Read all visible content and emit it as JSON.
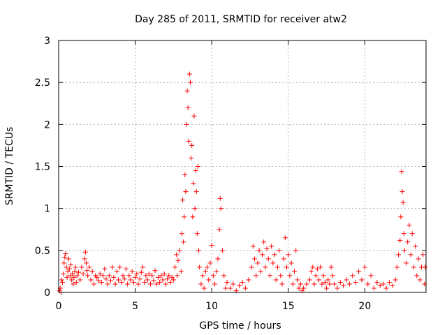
{
  "chart_data": {
    "type": "scatter",
    "title": "Day 285 of 2011, SRMTID for receiver atw2",
    "xlabel": "GPS time / hours",
    "ylabel": "SRMTID / TECUs",
    "xlim": [
      0,
      24
    ],
    "ylim": [
      0,
      3
    ],
    "xticks": [
      0,
      5,
      10,
      15,
      20
    ],
    "xtick_labels": [
      "0",
      "5",
      "10",
      "15",
      "20"
    ],
    "yticks": [
      0,
      0.5,
      1,
      1.5,
      2,
      2.5,
      3
    ],
    "ytick_labels": [
      "0",
      "0.5",
      "1",
      "1.5",
      "2",
      "2.5",
      "3"
    ],
    "grid": true,
    "marker": "plus",
    "series_color": "#ff0000",
    "series": [
      {
        "name": "SRMTID",
        "points": [
          [
            0.05,
            0.02
          ],
          [
            0.1,
            0.05
          ],
          [
            0.15,
            0.0
          ],
          [
            0.2,
            0.15
          ],
          [
            0.25,
            0.12
          ],
          [
            0.3,
            0.22
          ],
          [
            0.35,
            0.35
          ],
          [
            0.4,
            0.42
          ],
          [
            0.45,
            0.46
          ],
          [
            0.5,
            0.3
          ],
          [
            0.55,
            0.18
          ],
          [
            0.6,
            0.25
          ],
          [
            0.65,
            0.4
          ],
          [
            0.7,
            0.28
          ],
          [
            0.75,
            0.2
          ],
          [
            0.8,
            0.33
          ],
          [
            0.85,
            0.15
          ],
          [
            0.9,
            0.22
          ],
          [
            0.95,
            0.1
          ],
          [
            1.0,
            0.18
          ],
          [
            1.05,
            0.25
          ],
          [
            1.1,
            0.3
          ],
          [
            1.15,
            0.12
          ],
          [
            1.2,
            0.2
          ],
          [
            1.3,
            0.24
          ],
          [
            1.4,
            0.15
          ],
          [
            1.5,
            0.3
          ],
          [
            1.6,
            0.22
          ],
          [
            1.7,
            0.4
          ],
          [
            1.75,
            0.48
          ],
          [
            1.8,
            0.35
          ],
          [
            1.85,
            0.26
          ],
          [
            1.9,
            0.2
          ],
          [
            2.0,
            0.3
          ],
          [
            2.1,
            0.15
          ],
          [
            2.2,
            0.25
          ],
          [
            2.3,
            0.1
          ],
          [
            2.4,
            0.2
          ],
          [
            2.5,
            0.18
          ],
          [
            2.6,
            0.14
          ],
          [
            2.7,
            0.22
          ],
          [
            2.8,
            0.12
          ],
          [
            2.9,
            0.2
          ],
          [
            3.0,
            0.28
          ],
          [
            3.1,
            0.16
          ],
          [
            3.2,
            0.1
          ],
          [
            3.3,
            0.2
          ],
          [
            3.4,
            0.14
          ],
          [
            3.5,
            0.3
          ],
          [
            3.6,
            0.18
          ],
          [
            3.7,
            0.1
          ],
          [
            3.8,
            0.25
          ],
          [
            3.9,
            0.15
          ],
          [
            4.0,
            0.3
          ],
          [
            4.1,
            0.12
          ],
          [
            4.2,
            0.2
          ],
          [
            4.3,
            0.16
          ],
          [
            4.4,
            0.28
          ],
          [
            4.5,
            0.1
          ],
          [
            4.6,
            0.2
          ],
          [
            4.7,
            0.15
          ],
          [
            4.8,
            0.25
          ],
          [
            4.9,
            0.12
          ],
          [
            5.0,
            0.18
          ],
          [
            5.1,
            0.22
          ],
          [
            5.2,
            0.1
          ],
          [
            5.3,
            0.16
          ],
          [
            5.4,
            0.24
          ],
          [
            5.5,
            0.3
          ],
          [
            5.6,
            0.12
          ],
          [
            5.7,
            0.2
          ],
          [
            5.8,
            0.15
          ],
          [
            5.9,
            0.22
          ],
          [
            6.0,
            0.1
          ],
          [
            6.1,
            0.2
          ],
          [
            6.2,
            0.14
          ],
          [
            6.3,
            0.26
          ],
          [
            6.4,
            0.1
          ],
          [
            6.5,
            0.18
          ],
          [
            6.6,
            0.12
          ],
          [
            6.7,
            0.2
          ],
          [
            6.8,
            0.15
          ],
          [
            6.9,
            0.22
          ],
          [
            7.0,
            0.1
          ],
          [
            7.1,
            0.16
          ],
          [
            7.2,
            0.2
          ],
          [
            7.3,
            0.12
          ],
          [
            7.4,
            0.18
          ],
          [
            7.5,
            0.15
          ],
          [
            7.6,
            0.3
          ],
          [
            7.7,
            0.45
          ],
          [
            7.75,
            0.2
          ],
          [
            7.8,
            0.38
          ],
          [
            7.9,
            0.5
          ],
          [
            8.0,
            0.25
          ],
          [
            8.05,
            0.7
          ],
          [
            8.1,
            1.1
          ],
          [
            8.15,
            0.6
          ],
          [
            8.2,
            0.9
          ],
          [
            8.25,
            1.4
          ],
          [
            8.3,
            1.2
          ],
          [
            8.35,
            2.0
          ],
          [
            8.4,
            2.4
          ],
          [
            8.45,
            2.2
          ],
          [
            8.5,
            1.8
          ],
          [
            8.55,
            2.6
          ],
          [
            8.6,
            2.5
          ],
          [
            8.65,
            1.6
          ],
          [
            8.7,
            1.75
          ],
          [
            8.75,
            0.9
          ],
          [
            8.8,
            1.3
          ],
          [
            8.85,
            2.1
          ],
          [
            8.9,
            1.0
          ],
          [
            8.95,
            1.45
          ],
          [
            9.0,
            1.2
          ],
          [
            9.05,
            0.7
          ],
          [
            9.1,
            1.5
          ],
          [
            9.15,
            0.5
          ],
          [
            9.2,
            0.3
          ],
          [
            9.3,
            0.1
          ],
          [
            9.4,
            0.2
          ],
          [
            9.5,
            0.05
          ],
          [
            9.6,
            0.25
          ],
          [
            9.7,
            0.3
          ],
          [
            9.8,
            0.15
          ],
          [
            9.9,
            0.35
          ],
          [
            10.0,
            0.56
          ],
          [
            10.1,
            0.2
          ],
          [
            10.2,
            0.1
          ],
          [
            10.3,
            0.25
          ],
          [
            10.4,
            0.4
          ],
          [
            10.5,
            0.75
          ],
          [
            10.55,
            1.12
          ],
          [
            10.6,
            1.0
          ],
          [
            10.7,
            0.5
          ],
          [
            10.8,
            0.2
          ],
          [
            10.9,
            0.05
          ],
          [
            11.0,
            0.12
          ],
          [
            11.2,
            0.05
          ],
          [
            11.4,
            0.1
          ],
          [
            11.6,
            0.02
          ],
          [
            11.8,
            0.08
          ],
          [
            12.0,
            0.12
          ],
          [
            12.2,
            0.05
          ],
          [
            12.4,
            0.15
          ],
          [
            12.6,
            0.3
          ],
          [
            12.7,
            0.55
          ],
          [
            12.8,
            0.4
          ],
          [
            12.9,
            0.2
          ],
          [
            13.0,
            0.35
          ],
          [
            13.1,
            0.5
          ],
          [
            13.2,
            0.25
          ],
          [
            13.3,
            0.45
          ],
          [
            13.4,
            0.6
          ],
          [
            13.5,
            0.3
          ],
          [
            13.6,
            0.52
          ],
          [
            13.7,
            0.4
          ],
          [
            13.8,
            0.2
          ],
          [
            13.9,
            0.55
          ],
          [
            14.0,
            0.35
          ],
          [
            14.1,
            0.45
          ],
          [
            14.2,
            0.15
          ],
          [
            14.3,
            0.3
          ],
          [
            14.4,
            0.5
          ],
          [
            14.5,
            0.2
          ],
          [
            14.6,
            0.1
          ],
          [
            14.7,
            0.4
          ],
          [
            14.8,
            0.65
          ],
          [
            14.9,
            0.3
          ],
          [
            15.0,
            0.45
          ],
          [
            15.1,
            0.2
          ],
          [
            15.2,
            0.35
          ],
          [
            15.3,
            0.1
          ],
          [
            15.4,
            0.25
          ],
          [
            15.5,
            0.5
          ],
          [
            15.6,
            0.15
          ],
          [
            15.7,
            0.05
          ],
          [
            15.8,
            0.1
          ],
          [
            15.9,
            0.02
          ],
          [
            16.0,
            0.05
          ],
          [
            16.2,
            0.1
          ],
          [
            16.4,
            0.15
          ],
          [
            16.5,
            0.25
          ],
          [
            16.6,
            0.3
          ],
          [
            16.7,
            0.1
          ],
          [
            16.8,
            0.2
          ],
          [
            16.9,
            0.28
          ],
          [
            17.0,
            0.15
          ],
          [
            17.1,
            0.3
          ],
          [
            17.2,
            0.1
          ],
          [
            17.3,
            0.2
          ],
          [
            17.4,
            0.12
          ],
          [
            17.5,
            0.05
          ],
          [
            17.6,
            0.15
          ],
          [
            17.7,
            0.1
          ],
          [
            17.8,
            0.3
          ],
          [
            17.9,
            0.2
          ],
          [
            18.0,
            0.1
          ],
          [
            18.2,
            0.05
          ],
          [
            18.4,
            0.12
          ],
          [
            18.6,
            0.08
          ],
          [
            18.8,
            0.15
          ],
          [
            19.0,
            0.1
          ],
          [
            19.2,
            0.2
          ],
          [
            19.4,
            0.12
          ],
          [
            19.6,
            0.25
          ],
          [
            19.8,
            0.15
          ],
          [
            20.0,
            0.3
          ],
          [
            20.2,
            0.1
          ],
          [
            20.4,
            0.2
          ],
          [
            20.6,
            0.05
          ],
          [
            20.8,
            0.12
          ],
          [
            21.0,
            0.08
          ],
          [
            21.2,
            0.1
          ],
          [
            21.4,
            0.05
          ],
          [
            21.6,
            0.12
          ],
          [
            21.8,
            0.08
          ],
          [
            22.0,
            0.15
          ],
          [
            22.1,
            0.3
          ],
          [
            22.2,
            0.45
          ],
          [
            22.3,
            0.62
          ],
          [
            22.35,
            0.9
          ],
          [
            22.4,
            1.44
          ],
          [
            22.45,
            1.2
          ],
          [
            22.5,
            1.07
          ],
          [
            22.55,
            0.7
          ],
          [
            22.6,
            0.5
          ],
          [
            22.7,
            0.35
          ],
          [
            22.8,
            0.6
          ],
          [
            22.9,
            0.8
          ],
          [
            23.0,
            0.45
          ],
          [
            23.1,
            0.7
          ],
          [
            23.2,
            0.3
          ],
          [
            23.3,
            0.55
          ],
          [
            23.4,
            0.2
          ],
          [
            23.5,
            0.4
          ],
          [
            23.6,
            0.15
          ],
          [
            23.7,
            0.3
          ],
          [
            23.8,
            0.45
          ],
          [
            23.9,
            0.1
          ],
          [
            23.95,
            0.3
          ]
        ]
      }
    ]
  }
}
